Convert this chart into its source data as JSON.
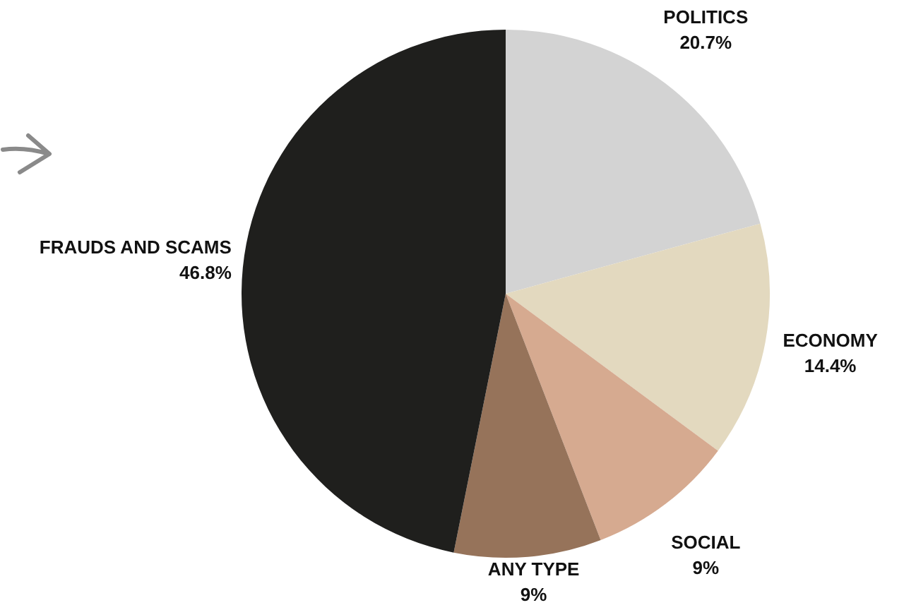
{
  "chart_data": {
    "type": "pie",
    "categories": [
      "POLITICS",
      "ECONOMY",
      "SOCIAL",
      "ANY TYPE",
      "FRAUDS AND SCAMS"
    ],
    "values": [
      20.7,
      14.4,
      9,
      9,
      46.8
    ],
    "colors": [
      "#d3d3d3",
      "#e3d9bf",
      "#d6aa90",
      "#96735a",
      "#1f1f1d"
    ],
    "value_labels": [
      "20.7%",
      "14.4%",
      "9%",
      "9%",
      "46.8%"
    ],
    "legend": false
  }
}
